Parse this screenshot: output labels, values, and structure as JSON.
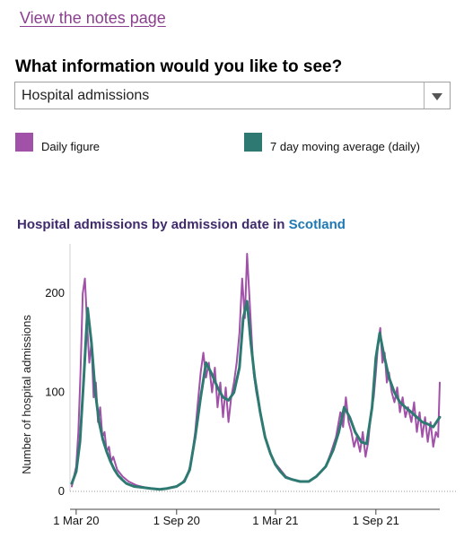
{
  "notes_link": {
    "label": "View the notes page"
  },
  "selector": {
    "question": "What information would you like to see?",
    "value": "Hospital admissions"
  },
  "legend": [
    {
      "label": "Daily figure",
      "color": "#a151a8"
    },
    {
      "label": "7 day moving average (daily)",
      "color": "#2e7a72"
    }
  ],
  "chart_title": {
    "prefix": "Hospital admissions by admission date in ",
    "region": "Scotland"
  },
  "chart_data": {
    "type": "line",
    "title": "Hospital admissions by admission date in Scotland",
    "xlabel": "",
    "ylabel": "Number of hospital admissions",
    "ylim": [
      0,
      250
    ],
    "yticks": [
      0,
      100,
      200
    ],
    "xticks": [
      "1 Mar 20",
      "1 Sep 20",
      "1 Mar 21",
      "1 Sep 21"
    ],
    "xtick_dates": [
      "2020-03-01",
      "2020-09-01",
      "2021-03-01",
      "2021-09-01"
    ],
    "x_start": "2020-02-22",
    "x_end": "2021-12-27",
    "grid": false,
    "legend_position": "top",
    "series": [
      {
        "name": "7 day moving average (daily)",
        "color": "#2e7a72",
        "dates": [
          "2020-02-22",
          "2020-03-01",
          "2020-03-08",
          "2020-03-15",
          "2020-03-22",
          "2020-03-29",
          "2020-04-05",
          "2020-04-12",
          "2020-04-19",
          "2020-04-26",
          "2020-05-03",
          "2020-05-10",
          "2020-05-17",
          "2020-05-24",
          "2020-06-01",
          "2020-06-15",
          "2020-07-01",
          "2020-07-15",
          "2020-08-01",
          "2020-08-15",
          "2020-09-01",
          "2020-09-15",
          "2020-09-25",
          "2020-10-05",
          "2020-10-15",
          "2020-10-25",
          "2020-11-05",
          "2020-11-15",
          "2020-11-25",
          "2020-12-05",
          "2020-12-15",
          "2020-12-25",
          "2021-01-01",
          "2021-01-08",
          "2021-01-15",
          "2021-01-22",
          "2021-02-01",
          "2021-02-10",
          "2021-02-20",
          "2021-03-01",
          "2021-03-10",
          "2021-03-20",
          "2021-04-01",
          "2021-04-15",
          "2021-05-01",
          "2021-05-15",
          "2021-06-01",
          "2021-06-15",
          "2021-06-25",
          "2021-07-05",
          "2021-07-15",
          "2021-07-25",
          "2021-08-05",
          "2021-08-15",
          "2021-08-25",
          "2021-09-01",
          "2021-09-08",
          "2021-09-15",
          "2021-09-25",
          "2021-10-05",
          "2021-10-15",
          "2021-10-25",
          "2021-11-05",
          "2021-11-15",
          "2021-11-25",
          "2021-12-05",
          "2021-12-15",
          "2021-12-27"
        ],
        "values": [
          8,
          20,
          50,
          115,
          185,
          150,
          100,
          70,
          52,
          40,
          30,
          22,
          16,
          12,
          8,
          5,
          4,
          3,
          2,
          3,
          5,
          10,
          22,
          55,
          95,
          130,
          118,
          105,
          95,
          92,
          100,
          125,
          175,
          192,
          150,
          115,
          80,
          55,
          38,
          27,
          20,
          14,
          12,
          10,
          10,
          15,
          25,
          42,
          60,
          85,
          75,
          60,
          50,
          48,
          85,
          135,
          160,
          140,
          115,
          100,
          90,
          85,
          80,
          75,
          70,
          68,
          65,
          75
        ]
      },
      {
        "name": "Daily figure",
        "color": "#a151a8",
        "dates": [
          "2020-02-22",
          "2020-02-26",
          "2020-03-01",
          "2020-03-05",
          "2020-03-09",
          "2020-03-13",
          "2020-03-17",
          "2020-03-21",
          "2020-03-25",
          "2020-03-29",
          "2020-04-02",
          "2020-04-06",
          "2020-04-10",
          "2020-04-14",
          "2020-04-18",
          "2020-04-22",
          "2020-04-26",
          "2020-04-30",
          "2020-05-04",
          "2020-05-08",
          "2020-05-15",
          "2020-05-25",
          "2020-06-05",
          "2020-06-20",
          "2020-07-05",
          "2020-07-20",
          "2020-08-05",
          "2020-08-20",
          "2020-09-01",
          "2020-09-10",
          "2020-09-20",
          "2020-09-28",
          "2020-10-05",
          "2020-10-10",
          "2020-10-15",
          "2020-10-20",
          "2020-10-25",
          "2020-10-30",
          "2020-11-05",
          "2020-11-10",
          "2020-11-15",
          "2020-11-20",
          "2020-11-25",
          "2020-11-30",
          "2020-12-05",
          "2020-12-10",
          "2020-12-15",
          "2020-12-20",
          "2020-12-25",
          "2020-12-30",
          "2021-01-04",
          "2021-01-08",
          "2021-01-12",
          "2021-01-16",
          "2021-01-20",
          "2021-01-25",
          "2021-02-01",
          "2021-02-08",
          "2021-02-15",
          "2021-02-22",
          "2021-03-01",
          "2021-03-10",
          "2021-03-20",
          "2021-04-01",
          "2021-04-15",
          "2021-05-01",
          "2021-05-15",
          "2021-06-01",
          "2021-06-10",
          "2021-06-20",
          "2021-06-28",
          "2021-07-03",
          "2021-07-08",
          "2021-07-13",
          "2021-07-18",
          "2021-07-23",
          "2021-07-28",
          "2021-08-03",
          "2021-08-08",
          "2021-08-13",
          "2021-08-18",
          "2021-08-23",
          "2021-08-28",
          "2021-09-01",
          "2021-09-05",
          "2021-09-09",
          "2021-09-13",
          "2021-09-17",
          "2021-09-21",
          "2021-09-25",
          "2021-09-30",
          "2021-10-05",
          "2021-10-10",
          "2021-10-15",
          "2021-10-20",
          "2021-10-25",
          "2021-10-30",
          "2021-11-05",
          "2021-11-10",
          "2021-11-15",
          "2021-11-20",
          "2021-11-25",
          "2021-11-30",
          "2021-12-05",
          "2021-12-10",
          "2021-12-15",
          "2021-12-20",
          "2021-12-24",
          "2021-12-27"
        ],
        "values": [
          5,
          15,
          25,
          60,
          120,
          200,
          215,
          170,
          130,
          150,
          95,
          110,
          70,
          85,
          55,
          60,
          40,
          45,
          30,
          35,
          22,
          15,
          10,
          6,
          4,
          3,
          2,
          4,
          5,
          8,
          15,
          30,
          60,
          90,
          120,
          140,
          115,
          130,
          100,
          125,
          85,
          110,
          75,
          105,
          70,
          95,
          110,
          130,
          160,
          215,
          175,
          240,
          200,
          160,
          120,
          100,
          80,
          60,
          45,
          35,
          28,
          22,
          15,
          12,
          10,
          10,
          15,
          25,
          38,
          55,
          80,
          65,
          95,
          70,
          60,
          45,
          55,
          40,
          60,
          35,
          50,
          80,
          95,
          120,
          150,
          165,
          130,
          140,
          110,
          120,
          100,
          90,
          105,
          80,
          95,
          75,
          85,
          70,
          90,
          60,
          80,
          55,
          75,
          50,
          70,
          45,
          60,
          55,
          110
        ]
      }
    ]
  }
}
